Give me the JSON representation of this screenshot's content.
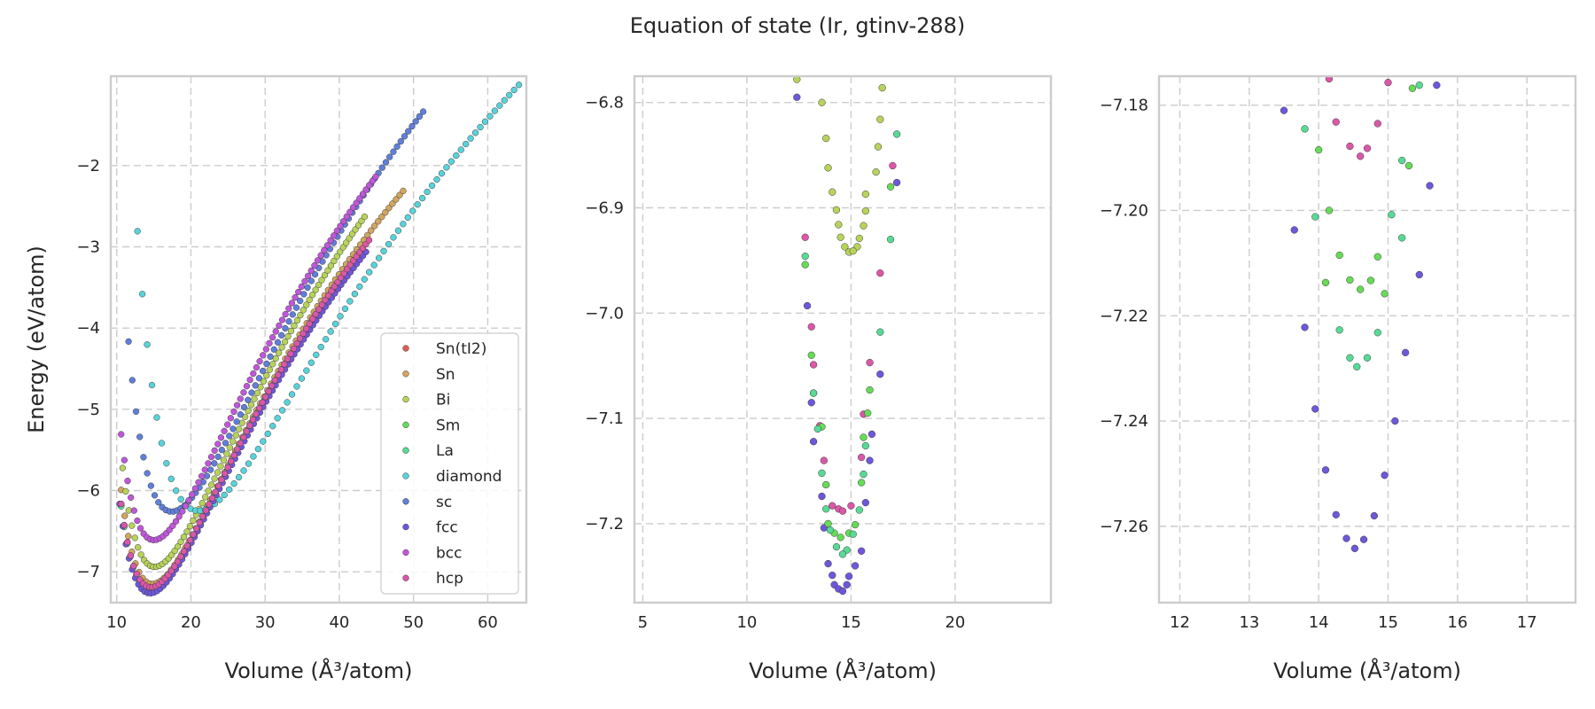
{
  "figure_title": "Equation of state (Ir, gtinv-288)",
  "structures": [
    {
      "name": "Sn(tI2)",
      "color": "#db5f57"
    },
    {
      "name": "Sn",
      "color": "#d3a65f"
    },
    {
      "name": "Bi",
      "color": "#b8d35a"
    },
    {
      "name": "Sm",
      "color": "#66db57"
    },
    {
      "name": "La",
      "color": "#57db94"
    },
    {
      "name": "diamond",
      "color": "#57d3db"
    },
    {
      "name": "sc",
      "color": "#5f7fdb"
    },
    {
      "name": "fcc",
      "color": "#6e57db"
    },
    {
      "name": "bcc",
      "color": "#c057db"
    },
    {
      "name": "hcp",
      "color": "#db57a8"
    }
  ],
  "chart_data": [
    {
      "type": "scatter",
      "title": "",
      "xlabel": "Volume (Å³/atom)",
      "ylabel": "Energy (eV/atom)",
      "xlim": [
        9.2,
        65.2
      ],
      "ylim": [
        -7.38,
        -0.9
      ],
      "xticks": [
        10,
        20,
        30,
        40,
        50,
        60
      ],
      "yticks": [
        -7,
        -6,
        -5,
        -4,
        -3,
        -2
      ],
      "legend": "lower-right",
      "eos": [
        {
          "name": "Sn(tI2)",
          "v0": 14.6,
          "e0": -7.19,
          "b": 0.036,
          "vmin": 10.6,
          "vmax": 44.0,
          "n": 80
        },
        {
          "name": "Sn",
          "v0": 14.8,
          "e0": -7.15,
          "b": 0.036,
          "vmin": 10.6,
          "vmax": 48.6,
          "n": 80
        },
        {
          "name": "Bi",
          "v0": 15.1,
          "e0": -6.94,
          "b": 0.036,
          "vmin": 10.8,
          "vmax": 43.4,
          "n": 80
        },
        {
          "name": "Sm",
          "v0": 14.6,
          "e0": -7.21,
          "b": 0.036,
          "vmin": 10.6,
          "vmax": 43.0,
          "n": 80
        },
        {
          "name": "La",
          "v0": 14.6,
          "e0": -7.22,
          "b": 0.036,
          "vmin": 10.6,
          "vmax": 43.0,
          "n": 80
        },
        {
          "name": "diamond",
          "v0": 21.0,
          "e0": -6.25,
          "b": 0.021,
          "vmin": 12.8,
          "vmax": 64.2,
          "n": 80
        },
        {
          "name": "sc",
          "v0": 17.4,
          "e0": -6.26,
          "b": 0.03,
          "vmin": 11.6,
          "vmax": 51.3,
          "n": 80
        },
        {
          "name": "fcc",
          "v0": 14.5,
          "e0": -7.265,
          "b": 0.036,
          "vmin": 10.4,
          "vmax": 43.6,
          "n": 80
        },
        {
          "name": "bcc",
          "v0": 15.0,
          "e0": -6.61,
          "b": 0.036,
          "vmin": 10.6,
          "vmax": 44.9,
          "n": 80
        },
        {
          "name": "hcp",
          "v0": 14.6,
          "e0": -7.19,
          "b": 0.036,
          "vmin": 10.6,
          "vmax": 44.0,
          "n": 80
        }
      ]
    },
    {
      "type": "scatter",
      "title": "",
      "xlabel": "Volume (Å³/atom)",
      "ylabel": "",
      "xlim": [
        4.6,
        24.6
      ],
      "ylim": [
        -7.275,
        -6.775
      ],
      "xticks": [
        5,
        10,
        15,
        20
      ],
      "yticks": [
        -7.2,
        -7.1,
        -7.0,
        -6.9,
        -6.8
      ],
      "points": [
        {
          "name": "Bi",
          "x": 12.4,
          "y": -6.778
        },
        {
          "name": "Bi",
          "x": 16.5,
          "y": -6.786
        },
        {
          "name": "Bi",
          "x": 13.6,
          "y": -6.8
        },
        {
          "name": "Bi",
          "x": 16.4,
          "y": -6.816
        },
        {
          "name": "Bi",
          "x": 13.8,
          "y": -6.834
        },
        {
          "name": "Bi",
          "x": 16.3,
          "y": -6.842
        },
        {
          "name": "Bi",
          "x": 13.9,
          "y": -6.862
        },
        {
          "name": "Bi",
          "x": 16.2,
          "y": -6.866
        },
        {
          "name": "Bi",
          "x": 14.1,
          "y": -6.885
        },
        {
          "name": "Bi",
          "x": 15.7,
          "y": -6.887
        },
        {
          "name": "Bi",
          "x": 14.3,
          "y": -6.902
        },
        {
          "name": "Bi",
          "x": 15.7,
          "y": -6.903
        },
        {
          "name": "Bi",
          "x": 14.4,
          "y": -6.916
        },
        {
          "name": "Bi",
          "x": 15.6,
          "y": -6.917
        },
        {
          "name": "Bi",
          "x": 14.5,
          "y": -6.928
        },
        {
          "name": "Bi",
          "x": 15.4,
          "y": -6.929
        },
        {
          "name": "Bi",
          "x": 14.7,
          "y": -6.937
        },
        {
          "name": "Bi",
          "x": 15.3,
          "y": -6.937
        },
        {
          "name": "Bi",
          "x": 14.9,
          "y": -6.942
        },
        {
          "name": "Bi",
          "x": 15.1,
          "y": -6.941
        },
        {
          "name": "fcc",
          "x": 12.4,
          "y": -6.795
        },
        {
          "name": "fcc",
          "x": 17.2,
          "y": -6.876
        },
        {
          "name": "fcc",
          "x": 12.9,
          "y": -6.993
        },
        {
          "name": "fcc",
          "x": 16.4,
          "y": -7.058
        },
        {
          "name": "fcc",
          "x": 13.1,
          "y": -7.085
        },
        {
          "name": "fcc",
          "x": 16.0,
          "y": -7.115
        },
        {
          "name": "fcc",
          "x": 13.2,
          "y": -7.122
        },
        {
          "name": "fcc",
          "x": 15.9,
          "y": -7.14
        },
        {
          "name": "fcc",
          "x": 13.6,
          "y": -7.174
        },
        {
          "name": "fcc",
          "x": 15.7,
          "y": -7.18
        },
        {
          "name": "fcc",
          "x": 13.7,
          "y": -7.204
        },
        {
          "name": "fcc",
          "x": 15.5,
          "y": -7.226
        },
        {
          "name": "fcc",
          "x": 13.9,
          "y": -7.238
        },
        {
          "name": "fcc",
          "x": 15.2,
          "y": -7.24
        },
        {
          "name": "fcc",
          "x": 14.1,
          "y": -7.249
        },
        {
          "name": "fcc",
          "x": 14.9,
          "y": -7.25
        },
        {
          "name": "fcc",
          "x": 14.2,
          "y": -7.258
        },
        {
          "name": "fcc",
          "x": 14.8,
          "y": -7.258
        },
        {
          "name": "fcc",
          "x": 14.4,
          "y": -7.262
        },
        {
          "name": "fcc",
          "x": 14.6,
          "y": -7.264
        },
        {
          "name": "hcp",
          "x": 12.8,
          "y": -6.928
        },
        {
          "name": "hcp",
          "x": 17.0,
          "y": -6.86
        },
        {
          "name": "hcp",
          "x": 16.4,
          "y": -6.962
        },
        {
          "name": "hcp",
          "x": 13.1,
          "y": -7.013
        },
        {
          "name": "hcp",
          "x": 13.2,
          "y": -7.049
        },
        {
          "name": "hcp",
          "x": 15.9,
          "y": -7.047
        },
        {
          "name": "hcp",
          "x": 13.5,
          "y": -7.107
        },
        {
          "name": "hcp",
          "x": 15.6,
          "y": -7.096
        },
        {
          "name": "hcp",
          "x": 13.7,
          "y": -7.14
        },
        {
          "name": "hcp",
          "x": 15.5,
          "y": -7.137
        },
        {
          "name": "hcp",
          "x": 14.1,
          "y": -7.183
        },
        {
          "name": "hcp",
          "x": 15.0,
          "y": -7.183
        },
        {
          "name": "hcp",
          "x": 14.4,
          "y": -7.186
        },
        {
          "name": "hcp",
          "x": 14.6,
          "y": -7.188
        },
        {
          "name": "Sm",
          "x": 12.8,
          "y": -6.954
        },
        {
          "name": "Sm",
          "x": 16.9,
          "y": -6.88
        },
        {
          "name": "Sm",
          "x": 13.1,
          "y": -7.04
        },
        {
          "name": "Sm",
          "x": 15.9,
          "y": -7.073
        },
        {
          "name": "Sm",
          "x": 13.2,
          "y": -7.076
        },
        {
          "name": "Sm",
          "x": 15.8,
          "y": -7.095
        },
        {
          "name": "Sm",
          "x": 13.6,
          "y": -7.108
        },
        {
          "name": "Sm",
          "x": 15.6,
          "y": -7.118
        },
        {
          "name": "Sm",
          "x": 13.8,
          "y": -7.163
        },
        {
          "name": "Sm",
          "x": 15.5,
          "y": -7.161
        },
        {
          "name": "Sm",
          "x": 13.9,
          "y": -7.2
        },
        {
          "name": "Sm",
          "x": 15.2,
          "y": -7.201
        },
        {
          "name": "Sm",
          "x": 14.2,
          "y": -7.209
        },
        {
          "name": "Sm",
          "x": 14.9,
          "y": -7.209
        },
        {
          "name": "Sm",
          "x": 14.5,
          "y": -7.213
        },
        {
          "name": "La",
          "x": 12.8,
          "y": -6.946
        },
        {
          "name": "La",
          "x": 17.2,
          "y": -6.83
        },
        {
          "name": "La",
          "x": 16.9,
          "y": -6.93
        },
        {
          "name": "La",
          "x": 16.4,
          "y": -7.018
        },
        {
          "name": "La",
          "x": 13.2,
          "y": -7.076
        },
        {
          "name": "La",
          "x": 13.4,
          "y": -7.11
        },
        {
          "name": "La",
          "x": 15.7,
          "y": -7.126
        },
        {
          "name": "La",
          "x": 13.6,
          "y": -7.152
        },
        {
          "name": "La",
          "x": 15.6,
          "y": -7.153
        },
        {
          "name": "La",
          "x": 13.8,
          "y": -7.186
        },
        {
          "name": "La",
          "x": 15.4,
          "y": -7.187
        },
        {
          "name": "La",
          "x": 14.0,
          "y": -7.206
        },
        {
          "name": "La",
          "x": 15.1,
          "y": -7.21
        },
        {
          "name": "La",
          "x": 14.3,
          "y": -7.222
        },
        {
          "name": "La",
          "x": 14.8,
          "y": -7.225
        },
        {
          "name": "La",
          "x": 14.6,
          "y": -7.229
        }
      ]
    },
    {
      "type": "scatter",
      "title": "",
      "xlabel": "Volume (Å³/atom)",
      "ylabel": "",
      "xlim": [
        11.7,
        17.7
      ],
      "ylim": [
        -7.2745,
        -7.1745
      ],
      "xticks": [
        12,
        13,
        14,
        15,
        16,
        17
      ],
      "yticks": [
        -7.26,
        -7.24,
        -7.22,
        -7.2,
        -7.18
      ],
      "points": [
        {
          "name": "hcp",
          "x": 14.15,
          "y": -7.175
        },
        {
          "name": "hcp",
          "x": 15.0,
          "y": -7.1757
        },
        {
          "name": "hcp",
          "x": 14.25,
          "y": -7.1832
        },
        {
          "name": "hcp",
          "x": 14.85,
          "y": -7.1835
        },
        {
          "name": "hcp",
          "x": 14.45,
          "y": -7.1878
        },
        {
          "name": "hcp",
          "x": 14.7,
          "y": -7.1882
        },
        {
          "name": "hcp",
          "x": 14.6,
          "y": -7.1897
        },
        {
          "name": "Sm",
          "x": 15.35,
          "y": -7.1768
        },
        {
          "name": "Sm",
          "x": 14.0,
          "y": -7.1885
        },
        {
          "name": "Sm",
          "x": 15.3,
          "y": -7.1915
        },
        {
          "name": "Sm",
          "x": 14.15,
          "y": -7.2
        },
        {
          "name": "Sm",
          "x": 14.3,
          "y": -7.2085
        },
        {
          "name": "Sm",
          "x": 14.85,
          "y": -7.2088
        },
        {
          "name": "Sm",
          "x": 14.1,
          "y": -7.2137
        },
        {
          "name": "Sm",
          "x": 14.45,
          "y": -7.2132
        },
        {
          "name": "Sm",
          "x": 14.75,
          "y": -7.2133
        },
        {
          "name": "Sm",
          "x": 14.6,
          "y": -7.215
        },
        {
          "name": "Sm",
          "x": 14.95,
          "y": -7.2158
        },
        {
          "name": "La",
          "x": 15.45,
          "y": -7.1762
        },
        {
          "name": "La",
          "x": 13.8,
          "y": -7.1845
        },
        {
          "name": "La",
          "x": 15.2,
          "y": -7.1905
        },
        {
          "name": "La",
          "x": 13.95,
          "y": -7.2012
        },
        {
          "name": "La",
          "x": 15.05,
          "y": -7.2008
        },
        {
          "name": "La",
          "x": 15.2,
          "y": -7.2052
        },
        {
          "name": "La",
          "x": 14.3,
          "y": -7.2227
        },
        {
          "name": "La",
          "x": 14.85,
          "y": -7.2232
        },
        {
          "name": "La",
          "x": 14.45,
          "y": -7.228
        },
        {
          "name": "La",
          "x": 14.7,
          "y": -7.228
        },
        {
          "name": "La",
          "x": 14.55,
          "y": -7.2297
        },
        {
          "name": "fcc",
          "x": 15.7,
          "y": -7.1762
        },
        {
          "name": "fcc",
          "x": 13.5,
          "y": -7.181
        },
        {
          "name": "fcc",
          "x": 15.6,
          "y": -7.1953
        },
        {
          "name": "fcc",
          "x": 13.65,
          "y": -7.2037
        },
        {
          "name": "fcc",
          "x": 15.45,
          "y": -7.2122
        },
        {
          "name": "fcc",
          "x": 13.8,
          "y": -7.2222
        },
        {
          "name": "fcc",
          "x": 15.25,
          "y": -7.227
        },
        {
          "name": "fcc",
          "x": 13.95,
          "y": -7.2377
        },
        {
          "name": "fcc",
          "x": 15.1,
          "y": -7.24
        },
        {
          "name": "fcc",
          "x": 14.1,
          "y": -7.2493
        },
        {
          "name": "fcc",
          "x": 14.95,
          "y": -7.2503
        },
        {
          "name": "fcc",
          "x": 14.25,
          "y": -7.2578
        },
        {
          "name": "fcc",
          "x": 14.8,
          "y": -7.258
        },
        {
          "name": "fcc",
          "x": 14.4,
          "y": -7.2623
        },
        {
          "name": "fcc",
          "x": 14.65,
          "y": -7.2625
        },
        {
          "name": "fcc",
          "x": 14.52,
          "y": -7.2642
        }
      ]
    }
  ]
}
